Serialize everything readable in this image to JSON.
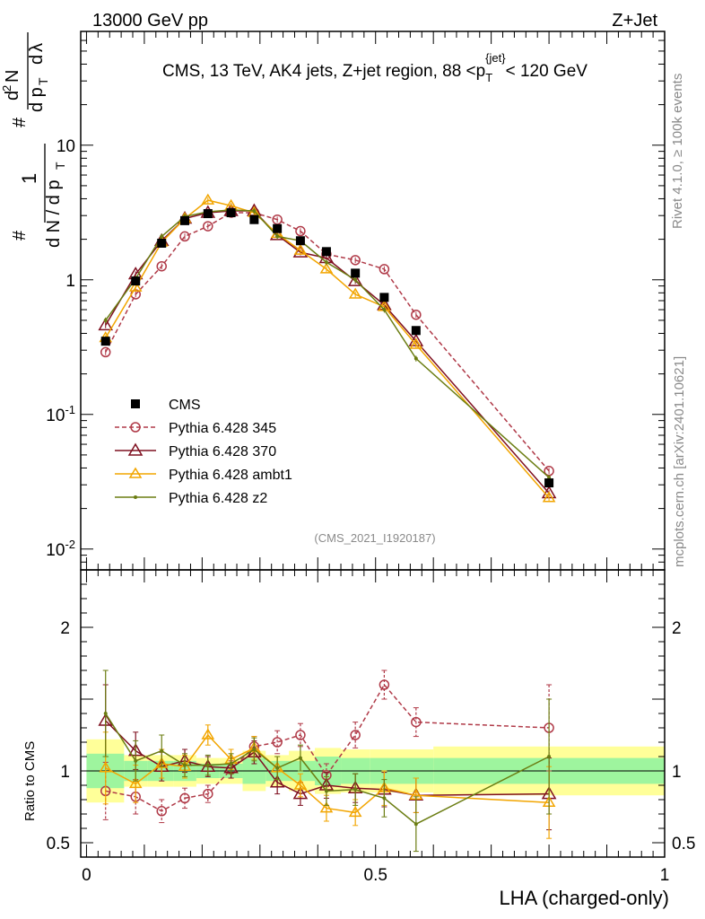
{
  "header": {
    "left": "13000 GeV pp",
    "right": "Z+Jet"
  },
  "side_text": {
    "rivet": "Rivet 4.1.0, ≥ 100k events",
    "mcplots": "mcplots.cern.ch [arXiv:2401.10621]"
  },
  "chart_data": {
    "type": "line",
    "title": "CMS, 13 TeV, AK4 jets, Z+jet region, 88 <p_T^{jet}< 120 GeV",
    "watermark": "(CMS_2021_I1920187)",
    "xlabel": "LHA (charged-only)",
    "ylabel": "1/dN/dpT dN/dpT dλ",
    "ratio_ylabel": "Ratio to CMS",
    "xlim": [
      -0.01,
      1.0
    ],
    "ylim": [
      0.007,
      70
    ],
    "ratio_ylim": [
      0.4,
      2.4
    ],
    "y_scale": "log",
    "main_yticks": [
      {
        "v": 0.01,
        "l": "10^-2"
      },
      {
        "v": 0.1,
        "l": "10^-1"
      },
      {
        "v": 1,
        "l": "1"
      },
      {
        "v": 10,
        "l": "10"
      }
    ],
    "ratio_yticks": [
      {
        "v": 0.5,
        "l": "0.5"
      },
      {
        "v": 1,
        "l": "1"
      },
      {
        "v": 2,
        "l": "2"
      }
    ],
    "xticks": [
      {
        "v": 0,
        "l": "0"
      },
      {
        "v": 0.5,
        "l": "0.5"
      },
      {
        "v": 1,
        "l": "1"
      }
    ],
    "x": [
      0.033,
      0.085,
      0.13,
      0.17,
      0.21,
      0.25,
      0.29,
      0.33,
      0.37,
      0.415,
      0.465,
      0.515,
      0.57,
      0.8
    ],
    "bin_edges": [
      0.0,
      0.065,
      0.105,
      0.15,
      0.19,
      0.23,
      0.27,
      0.31,
      0.35,
      0.395,
      0.44,
      0.49,
      0.54,
      0.6,
      1.0
    ],
    "data_band_inner": [
      0.12,
      0.07,
      0.07,
      0.07,
      0.05,
      0.05,
      0.09,
      0.07,
      0.07,
      0.1,
      0.09,
      0.09,
      0.09,
      0.09
    ],
    "data_band_outer": [
      0.22,
      0.11,
      0.11,
      0.11,
      0.09,
      0.09,
      0.14,
      0.11,
      0.14,
      0.16,
      0.15,
      0.15,
      0.15,
      0.17
    ],
    "legend_position": "lower-left",
    "series": [
      {
        "name": "CMS",
        "kind": "data",
        "color": "#000000",
        "values": [
          0.35,
          0.98,
          1.87,
          2.75,
          3.1,
          3.15,
          2.8,
          2.4,
          1.95,
          1.62,
          1.12,
          0.74,
          0.42,
          0.031
        ]
      },
      {
        "name": "Pythia 6.428 345",
        "kind": "mc",
        "marker": "circle",
        "dash": true,
        "color": "#b03a48",
        "values": [
          0.29,
          0.78,
          1.26,
          2.1,
          2.5,
          3.15,
          3.15,
          2.8,
          2.3,
          1.55,
          1.4,
          1.2,
          0.55,
          0.038
        ],
        "ratio": [
          0.86,
          0.82,
          0.72,
          0.81,
          0.84,
          1.01,
          1.17,
          1.2,
          1.25,
          0.97,
          1.25,
          1.6,
          1.34,
          1.3
        ],
        "ratio_err": [
          0.2,
          0.12,
          0.08,
          0.07,
          0.06,
          0.06,
          0.07,
          0.08,
          0.08,
          0.08,
          0.09,
          0.1,
          0.1,
          0.3
        ]
      },
      {
        "name": "Pythia 6.428 370",
        "kind": "mc",
        "marker": "triangle-open",
        "dash": false,
        "color": "#7f1020",
        "values": [
          0.46,
          1.1,
          1.95,
          2.85,
          3.15,
          3.25,
          3.25,
          2.15,
          1.6,
          1.45,
          0.98,
          0.65,
          0.35,
          0.026
        ],
        "ratio": [
          1.35,
          1.14,
          1.03,
          1.07,
          1.03,
          1.02,
          1.13,
          0.92,
          0.84,
          0.9,
          0.88,
          0.87,
          0.83,
          0.84
        ],
        "ratio_err": [
          0.25,
          0.13,
          0.1,
          0.08,
          0.07,
          0.07,
          0.08,
          0.08,
          0.08,
          0.09,
          0.1,
          0.12,
          0.12,
          0.25
        ]
      },
      {
        "name": "Pythia 6.428 ambt1",
        "kind": "mc",
        "marker": "triangle-small",
        "dash": false,
        "color": "#f2a500",
        "values": [
          0.37,
          0.88,
          1.9,
          2.85,
          3.9,
          3.55,
          3.15,
          2.2,
          1.65,
          1.2,
          0.78,
          0.63,
          0.33,
          0.024
        ],
        "ratio": [
          1.02,
          0.91,
          1.05,
          1.03,
          1.25,
          1.08,
          1.16,
          1.02,
          0.9,
          0.74,
          0.71,
          0.88,
          0.83,
          0.78
        ],
        "ratio_err": [
          0.25,
          0.13,
          0.1,
          0.08,
          0.07,
          0.07,
          0.08,
          0.08,
          0.08,
          0.09,
          0.09,
          0.12,
          0.12,
          0.25
        ]
      },
      {
        "name": "Pythia 6.428 z2",
        "kind": "mc",
        "marker": "dot",
        "dash": false,
        "color": "#6b7d12",
        "values": [
          0.5,
          1.02,
          2.1,
          2.95,
          3.2,
          3.3,
          3.25,
          2.1,
          1.95,
          1.35,
          1.0,
          0.6,
          0.26,
          0.034
        ],
        "ratio": [
          1.4,
          1.07,
          1.14,
          1.04,
          1.04,
          1.05,
          1.15,
          1.02,
          1.09,
          0.86,
          0.87,
          0.81,
          0.63,
          1.1
        ],
        "ratio_err": [
          0.3,
          0.14,
          0.11,
          0.08,
          0.07,
          0.07,
          0.08,
          0.08,
          0.09,
          0.1,
          0.11,
          0.13,
          0.19,
          0.4
        ]
      }
    ]
  }
}
